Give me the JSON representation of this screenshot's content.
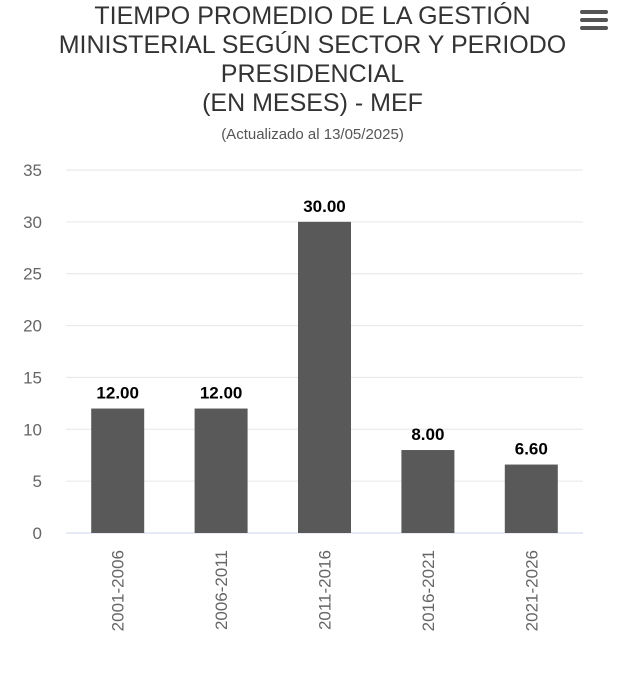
{
  "menu": {
    "icon": "hamburger-menu-icon"
  },
  "chart_data": {
    "type": "bar",
    "title": "TIEMPO PROMEDIO DE LA GESTIÓN MINISTERIAL SEGÚN SECTOR Y PERIODO PRESIDENCIAL (EN MESES) - MEF",
    "title_lines": [
      "TIEMPO PROMEDIO DE LA GESTIÓN",
      "MINISTERIAL SEGÚN SECTOR Y PERIODO",
      "PRESIDENCIAL",
      "(EN MESES) - MEF"
    ],
    "subtitle": "(Actualizado al 13/05/2025)",
    "categories": [
      "2001-2006",
      "2006-2011",
      "2011-2016",
      "2016-2021",
      "2021-2026"
    ],
    "values": [
      12,
      12,
      30,
      8,
      6.6
    ],
    "data_labels": [
      "12.00",
      "12.00",
      "30.00",
      "8.00",
      "6.60"
    ],
    "xlabel": "",
    "ylabel": "",
    "ylim": [
      0,
      35
    ],
    "yticks": [
      "0",
      "5",
      "10",
      "15",
      "20",
      "25",
      "30",
      "35"
    ],
    "grid": true,
    "legend": "none",
    "bar_color": "#595959",
    "grid_color": "#e6e6e6",
    "axis_color": "#ccd6eb"
  }
}
